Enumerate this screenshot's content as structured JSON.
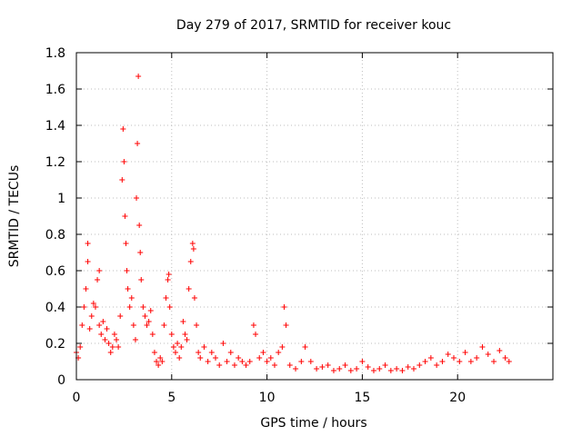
{
  "chart_data": {
    "type": "scatter",
    "title": "Day 279 of 2017, SRMTID for receiver kouc",
    "xlabel": "GPS time / hours",
    "ylabel": "SRMTID / TECUs",
    "xlim": [
      0,
      25
    ],
    "ylim": [
      0,
      1.8
    ],
    "x_ticks": [
      0,
      5,
      10,
      15,
      20
    ],
    "x_tick_labels": [
      "0",
      "5",
      "10",
      "15",
      "20"
    ],
    "y_ticks": [
      0,
      0.2,
      0.4,
      0.6,
      0.8,
      1.0,
      1.2,
      1.4,
      1.6,
      1.8
    ],
    "y_tick_labels": [
      "0",
      "0.2",
      "0.4",
      "0.6",
      "0.8",
      "1",
      "1.2",
      "1.4",
      "1.6",
      "1.8"
    ],
    "grid": true,
    "series": [
      {
        "name": "SRMTID",
        "marker": "+",
        "color": "#ff0000",
        "x": [
          0.0,
          0.1,
          0.2,
          0.3,
          0.4,
          0.5,
          0.6,
          0.6,
          0.7,
          0.8,
          0.9,
          1.0,
          1.1,
          1.2,
          1.2,
          1.3,
          1.4,
          1.5,
          1.6,
          1.7,
          1.8,
          1.9,
          2.0,
          2.1,
          2.2,
          2.3,
          2.4,
          2.45,
          2.5,
          2.55,
          2.6,
          2.65,
          2.7,
          2.8,
          2.9,
          3.0,
          3.1,
          3.15,
          3.2,
          3.25,
          3.3,
          3.35,
          3.4,
          3.5,
          3.6,
          3.7,
          3.8,
          3.9,
          4.0,
          4.1,
          4.2,
          4.3,
          4.4,
          4.5,
          4.6,
          4.7,
          4.8,
          4.85,
          4.9,
          5.0,
          5.1,
          5.2,
          5.3,
          5.4,
          5.5,
          5.6,
          5.7,
          5.8,
          5.9,
          6.0,
          6.1,
          6.15,
          6.2,
          6.3,
          6.4,
          6.5,
          6.7,
          6.9,
          7.1,
          7.3,
          7.5,
          7.7,
          7.9,
          8.1,
          8.3,
          8.5,
          8.7,
          8.9,
          9.1,
          9.3,
          9.4,
          9.6,
          9.8,
          10.0,
          10.2,
          10.4,
          10.6,
          10.8,
          10.9,
          11.0,
          11.2,
          11.5,
          11.8,
          12.0,
          12.3,
          12.6,
          12.9,
          13.2,
          13.5,
          13.8,
          14.1,
          14.4,
          14.7,
          15.0,
          15.3,
          15.6,
          15.9,
          16.2,
          16.5,
          16.8,
          17.1,
          17.4,
          17.7,
          18.0,
          18.3,
          18.6,
          18.9,
          19.2,
          19.5,
          19.8,
          20.1,
          20.4,
          20.7,
          21.0,
          21.3,
          21.6,
          21.9,
          22.2,
          22.5,
          22.7
        ],
        "y": [
          0.15,
          0.12,
          0.18,
          0.3,
          0.4,
          0.5,
          0.65,
          0.75,
          0.28,
          0.35,
          0.42,
          0.4,
          0.55,
          0.6,
          0.3,
          0.25,
          0.32,
          0.22,
          0.28,
          0.2,
          0.15,
          0.18,
          0.25,
          0.22,
          0.18,
          0.35,
          1.1,
          1.38,
          1.2,
          0.9,
          0.75,
          0.6,
          0.5,
          0.4,
          0.45,
          0.3,
          0.22,
          1.0,
          1.3,
          1.67,
          0.85,
          0.7,
          0.55,
          0.4,
          0.35,
          0.3,
          0.32,
          0.38,
          0.25,
          0.15,
          0.1,
          0.08,
          0.12,
          0.1,
          0.3,
          0.45,
          0.55,
          0.58,
          0.4,
          0.25,
          0.18,
          0.15,
          0.2,
          0.12,
          0.18,
          0.32,
          0.25,
          0.22,
          0.5,
          0.65,
          0.75,
          0.72,
          0.45,
          0.3,
          0.15,
          0.12,
          0.18,
          0.1,
          0.15,
          0.12,
          0.08,
          0.2,
          0.1,
          0.15,
          0.08,
          0.12,
          0.1,
          0.08,
          0.1,
          0.3,
          0.25,
          0.12,
          0.15,
          0.1,
          0.12,
          0.08,
          0.15,
          0.18,
          0.4,
          0.3,
          0.08,
          0.06,
          0.1,
          0.18,
          0.1,
          0.06,
          0.07,
          0.08,
          0.05,
          0.06,
          0.08,
          0.05,
          0.06,
          0.1,
          0.07,
          0.05,
          0.06,
          0.08,
          0.05,
          0.06,
          0.05,
          0.07,
          0.06,
          0.08,
          0.1,
          0.12,
          0.08,
          0.1,
          0.14,
          0.12,
          0.1,
          0.15,
          0.1,
          0.12,
          0.18,
          0.14,
          0.1,
          0.16,
          0.12,
          0.1
        ]
      }
    ]
  }
}
